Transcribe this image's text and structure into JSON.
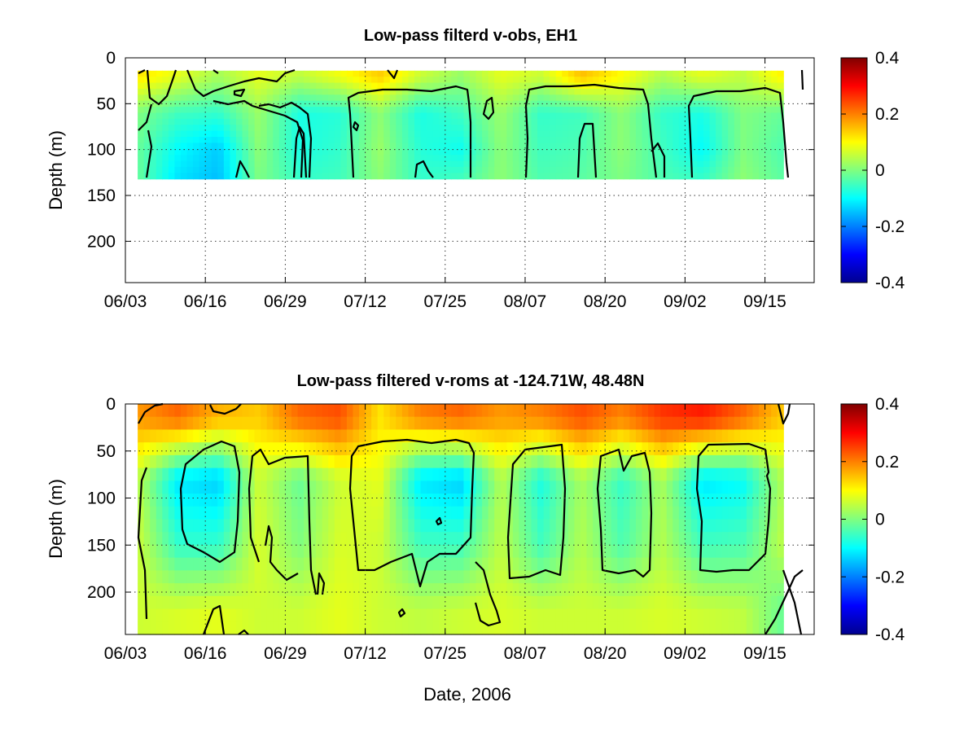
{
  "chart_data": [
    {
      "type": "heatmap",
      "title": "Low-pass filterd v-obs, EH1",
      "xlabel": "",
      "ylabel": "Depth (m)",
      "x_tick_labels": [
        "06/03",
        "06/16",
        "06/29",
        "07/12",
        "07/25",
        "08/07",
        "08/20",
        "09/02",
        "09/15"
      ],
      "xlim": [
        "2006-06-03",
        "2006-09-23"
      ],
      "y_ticks": [
        0,
        50,
        100,
        150,
        200
      ],
      "ylim": [
        0,
        245
      ],
      "y_reversed": true,
      "grid": true,
      "data_depth_range": [
        14,
        132
      ],
      "data_date_range": [
        "2006-06-05",
        "2006-09-18"
      ],
      "colorbar": {
        "ticks": [
          -0.4,
          -0.2,
          0,
          0.2,
          0.4
        ],
        "tick_labels": [
          "-0.4",
          "-0.2",
          "0",
          "0.2",
          "0.4"
        ],
        "range": [
          -0.4,
          0.4
        ],
        "colormap": "jet"
      },
      "contour_levels": [
        0
      ],
      "series": [
        {
          "name": "depth 20 m",
          "values": [
            0.12,
            0.08,
            0.03,
            0.08,
            0.05,
            0.09,
            0.14,
            0.06,
            0.02,
            0.08,
            0.06,
            0.15,
            0.1,
            0.04,
            0.08,
            0.05,
            0.11
          ]
        },
        {
          "name": "depth 60 m",
          "values": [
            0.0,
            -0.05,
            -0.06,
            0.02,
            -0.08,
            -0.07,
            0.01,
            -0.08,
            -0.05,
            0.02,
            -0.06,
            -0.05,
            0.01,
            -0.06,
            -0.08,
            0.0,
            -0.02
          ]
        },
        {
          "name": "depth 100 m",
          "values": [
            -0.02,
            -0.1,
            -0.14,
            0.01,
            -0.08,
            -0.06,
            0.02,
            -0.07,
            -0.09,
            0.01,
            -0.05,
            -0.04,
            0.01,
            -0.05,
            -0.1,
            0.0,
            -0.04
          ]
        },
        {
          "name": "depth 130 m",
          "values": [
            -0.02,
            -0.12,
            -0.15,
            0.0,
            -0.06,
            -0.05,
            0.01,
            -0.06,
            -0.05,
            0.01,
            -0.04,
            -0.03,
            0.0,
            -0.04,
            -0.06,
            0.01,
            -0.03
          ]
        }
      ]
    },
    {
      "type": "heatmap",
      "title": "Low-pass filtered v-roms at -124.71W, 48.48N",
      "xlabel": "Date, 2006",
      "ylabel": "Depth (m)",
      "x_tick_labels": [
        "06/03",
        "06/16",
        "06/29",
        "07/12",
        "07/25",
        "08/07",
        "08/20",
        "09/02",
        "09/15"
      ],
      "xlim": [
        "2006-06-03",
        "2006-09-23"
      ],
      "y_ticks": [
        0,
        50,
        100,
        150,
        200
      ],
      "ylim": [
        0,
        245
      ],
      "y_reversed": true,
      "grid": true,
      "data_depth_range": [
        0,
        245
      ],
      "data_date_range": [
        "2006-06-05",
        "2006-09-18"
      ],
      "colorbar": {
        "ticks": [
          -0.4,
          -0.2,
          0,
          0.2,
          0.4
        ],
        "tick_labels": [
          "-0.4",
          "-0.2",
          "0",
          "0.2",
          "0.4"
        ],
        "range": [
          -0.4,
          0.4
        ],
        "colormap": "jet"
      },
      "contour_levels": [
        0
      ],
      "series": [
        {
          "name": "depth 15 m",
          "values": [
            0.18,
            0.22,
            0.16,
            0.14,
            0.22,
            0.24,
            0.12,
            0.2,
            0.22,
            0.18,
            0.2,
            0.24,
            0.2,
            0.26,
            0.28,
            0.22,
            0.14
          ]
        },
        {
          "name": "depth 80 m",
          "values": [
            0.05,
            -0.12,
            -0.14,
            0.06,
            -0.02,
            0.06,
            0.08,
            -0.12,
            -0.14,
            0.04,
            -0.08,
            0.03,
            -0.06,
            0.03,
            -0.12,
            -0.1,
            0.04
          ]
        },
        {
          "name": "depth 150 m",
          "values": [
            0.06,
            -0.06,
            -0.06,
            0.07,
            0.0,
            0.07,
            0.06,
            -0.05,
            -0.05,
            0.05,
            -0.05,
            0.04,
            -0.04,
            0.04,
            -0.05,
            -0.04,
            0.05
          ]
        },
        {
          "name": "depth 220 m",
          "values": [
            0.06,
            0.07,
            0.08,
            0.06,
            0.06,
            0.08,
            0.06,
            0.05,
            0.06,
            0.07,
            0.06,
            0.06,
            0.06,
            0.07,
            0.06,
            0.05,
            -0.02
          ]
        }
      ]
    }
  ]
}
